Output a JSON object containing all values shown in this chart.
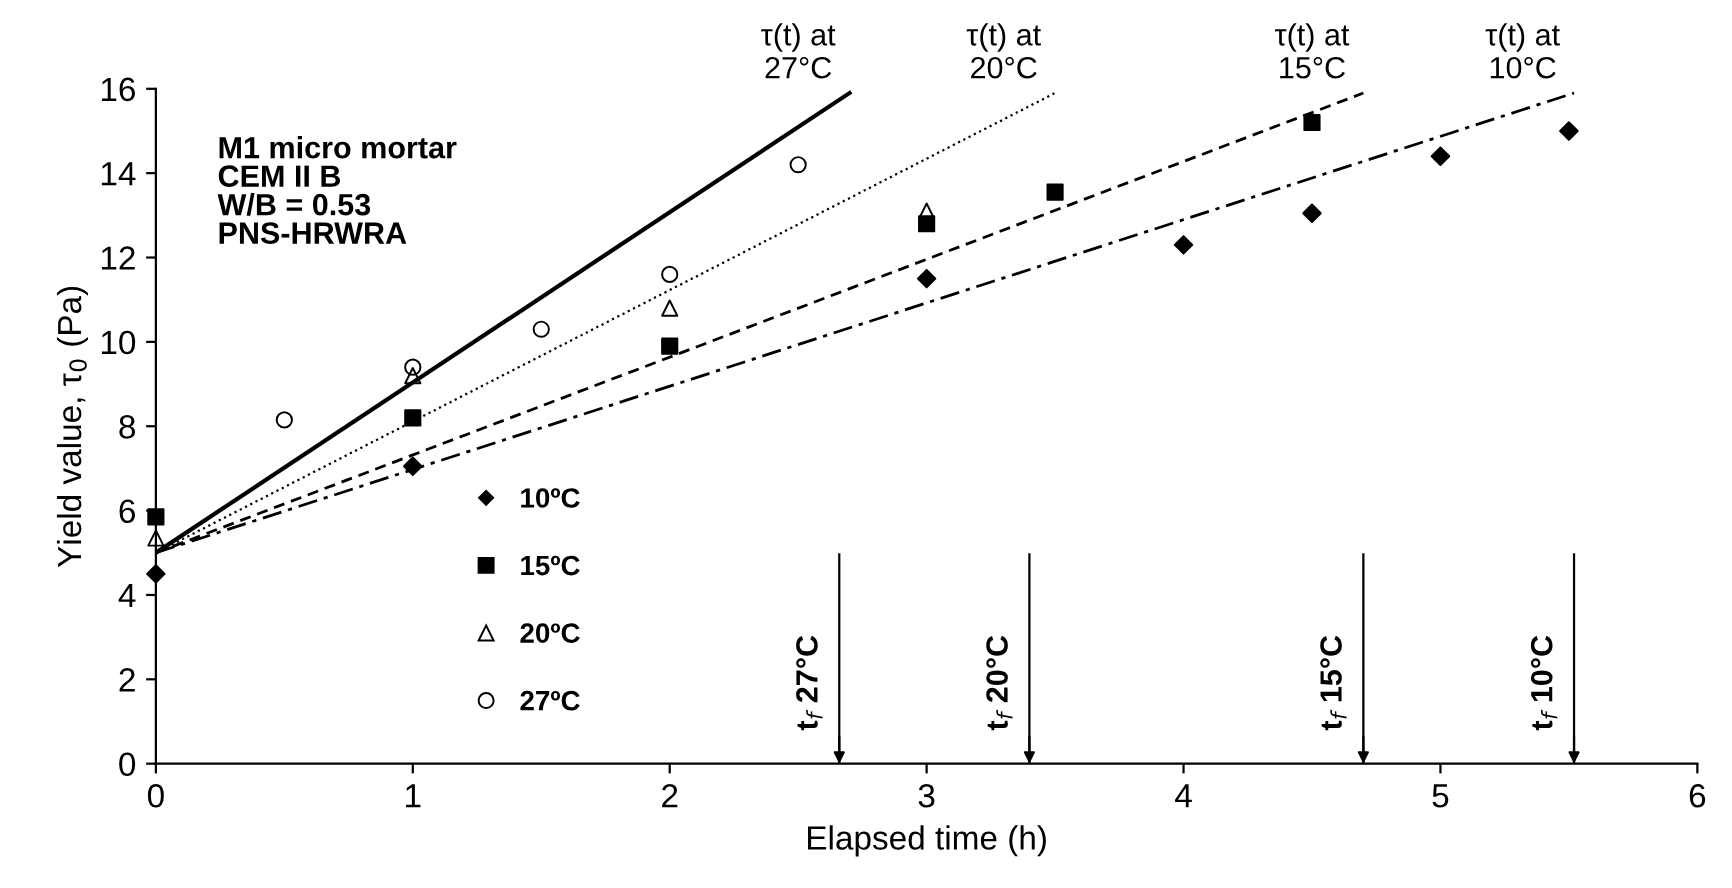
{
  "chart_data": {
    "type": "scatter",
    "xlabel": "Elapsed time (h)",
    "ylabel": "Yield value, τ$_{0}$ (Pa)",
    "xlim": [
      0,
      6
    ],
    "ylim": [
      0,
      16
    ],
    "xticks": [
      0,
      1,
      2,
      3,
      4,
      5,
      6
    ],
    "yticks": [
      0,
      2,
      4,
      6,
      8,
      10,
      12,
      14,
      16
    ],
    "grid": false,
    "legend": "left",
    "series": [
      {
        "name": "10ºC",
        "marker": "diamond",
        "color": "#000000",
        "x": [
          0,
          1,
          3,
          4,
          4.5,
          5,
          5.5
        ],
        "values": [
          4.5,
          7.05,
          11.5,
          12.3,
          13.05,
          14.4,
          15.0
        ]
      },
      {
        "name": "15ºC",
        "marker": "square",
        "color": "#000000",
        "x": [
          0,
          1,
          2,
          3,
          3.5,
          4.5
        ],
        "values": [
          5.85,
          8.2,
          9.9,
          12.8,
          13.55,
          15.2
        ]
      },
      {
        "name": "20ºC",
        "marker": "triangle",
        "color": "#000000",
        "x": [
          0,
          1,
          2,
          3
        ],
        "values": [
          5.35,
          9.2,
          10.8,
          13.1
        ]
      },
      {
        "name": "27ºC",
        "marker": "circle",
        "color": "#000000",
        "x": [
          0.5,
          1,
          1.5,
          2,
          2.5
        ],
        "values": [
          8.15,
          9.4,
          10.3,
          11.6,
          14.2
        ]
      },
      {
        "name": "τ(t) at\n27°C",
        "type": "line",
        "line_style": "solid",
        "color": "#000000",
        "x": [
          0,
          2.7
        ],
        "values": [
          5,
          15.9
        ]
      },
      {
        "name": "τ(t) at\n20°C",
        "type": "line",
        "line_style": "dotted",
        "color": "#000000",
        "x": [
          0,
          3.5
        ],
        "values": [
          5,
          15.9
        ]
      },
      {
        "name": "τ(t) at\n15°C",
        "type": "line",
        "line_style": "dashed",
        "color": "#000000",
        "x": [
          0,
          4.7
        ],
        "values": [
          5,
          15.9
        ]
      },
      {
        "name": "τ(t) at\n10°C",
        "type": "line",
        "line_style": "dashdot",
        "color": "#000000",
        "x": [
          0,
          5.52
        ],
        "values": [
          5,
          15.9
        ]
      }
    ],
    "ref_lines": [
      {
        "axis": "x",
        "value": 2.66,
        "label": "t$_{f}$ 27°C"
      },
      {
        "axis": "x",
        "value": 3.4,
        "label": "t$_{f}$ 20°C"
      },
      {
        "axis": "x",
        "value": 4.7,
        "label": "t$_{f}$ 15°C"
      },
      {
        "axis": "x",
        "value": 5.52,
        "label": "t$_{f}$ 10°C"
      }
    ],
    "annotations": [
      "M1 micro mortar\nCEM II B\nW/B = 0.53\nPNS-HRWRA"
    ]
  }
}
